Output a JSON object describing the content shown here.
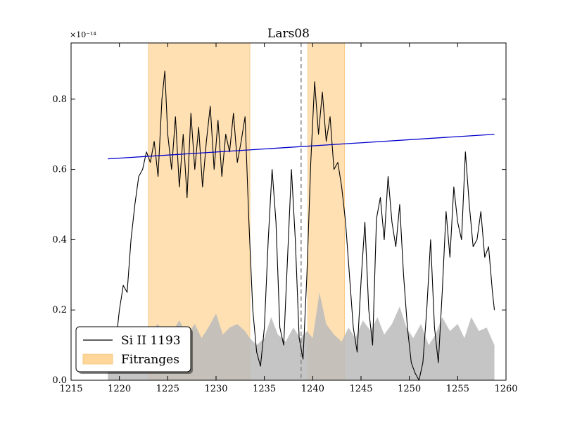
{
  "chart_data": {
    "type": "line",
    "title": "Lars08",
    "xlabel": "",
    "ylabel": "",
    "xlim": [
      1215,
      1260
    ],
    "ylim": [
      0.0,
      0.96
    ],
    "y_offset_label": "×10⁻¹⁴",
    "x_ticks": [
      "1215",
      "1220",
      "1225",
      "1230",
      "1235",
      "1240",
      "1245",
      "1250",
      "1255",
      "1260"
    ],
    "y_ticks": [
      "0.0",
      "0.2",
      "0.4",
      "0.6",
      "0.8"
    ],
    "fit_ranges": [
      [
        1223.0,
        1233.5
      ],
      [
        1239.5,
        1243.3
      ]
    ],
    "dashed_line_x": 1238.8,
    "continuum": {
      "x": [
        1218.8,
        1258.8
      ],
      "y": [
        0.63,
        0.7
      ]
    },
    "spectrum": {
      "name": "Si II 1193",
      "color": "#000000",
      "x": [
        1218.8,
        1219.2,
        1219.6,
        1220.0,
        1220.4,
        1220.8,
        1221.2,
        1221.6,
        1222.0,
        1222.4,
        1222.8,
        1223.2,
        1223.6,
        1224.0,
        1224.4,
        1224.7,
        1225.0,
        1225.4,
        1225.8,
        1226.2,
        1226.6,
        1227.0,
        1227.4,
        1227.8,
        1228.2,
        1228.6,
        1229.0,
        1229.4,
        1229.8,
        1230.2,
        1230.6,
        1231.0,
        1231.4,
        1231.8,
        1232.2,
        1232.6,
        1233.0,
        1233.4,
        1233.8,
        1234.2,
        1234.6,
        1235.0,
        1235.4,
        1235.8,
        1236.2,
        1236.6,
        1237.0,
        1237.4,
        1237.8,
        1238.2,
        1238.6,
        1239.0,
        1239.4,
        1239.8,
        1240.2,
        1240.6,
        1241.0,
        1241.4,
        1241.8,
        1242.2,
        1242.6,
        1243.0,
        1243.4,
        1243.8,
        1244.2,
        1244.6,
        1245.0,
        1245.4,
        1245.8,
        1246.2,
        1246.6,
        1247.0,
        1247.4,
        1247.8,
        1248.2,
        1248.6,
        1249.0,
        1249.4,
        1249.8,
        1250.2,
        1250.6,
        1251.0,
        1251.4,
        1251.8,
        1252.2,
        1252.6,
        1253.0,
        1253.4,
        1253.8,
        1254.2,
        1254.6,
        1255.0,
        1255.4,
        1255.8,
        1256.2,
        1256.6,
        1257.0,
        1257.4,
        1257.8,
        1258.2,
        1258.6,
        1258.8
      ],
      "y": [
        0.15,
        0.12,
        0.1,
        0.2,
        0.27,
        0.25,
        0.4,
        0.5,
        0.58,
        0.6,
        0.65,
        0.62,
        0.68,
        0.58,
        0.8,
        0.88,
        0.7,
        0.6,
        0.75,
        0.55,
        0.7,
        0.52,
        0.76,
        0.6,
        0.72,
        0.55,
        0.68,
        0.78,
        0.6,
        0.74,
        0.58,
        0.7,
        0.65,
        0.76,
        0.62,
        0.68,
        0.75,
        0.45,
        0.2,
        0.08,
        0.04,
        0.15,
        0.4,
        0.6,
        0.45,
        0.15,
        0.1,
        0.35,
        0.6,
        0.4,
        0.12,
        0.06,
        0.3,
        0.62,
        0.85,
        0.7,
        0.82,
        0.68,
        0.75,
        0.6,
        0.62,
        0.55,
        0.45,
        0.3,
        0.15,
        0.08,
        0.28,
        0.45,
        0.2,
        0.1,
        0.46,
        0.52,
        0.4,
        0.58,
        0.45,
        0.38,
        0.5,
        0.3,
        0.15,
        0.05,
        0.02,
        0.0,
        0.05,
        0.2,
        0.4,
        0.15,
        0.05,
        0.25,
        0.48,
        0.35,
        0.55,
        0.45,
        0.4,
        0.65,
        0.5,
        0.38,
        0.4,
        0.48,
        0.35,
        0.38,
        0.25,
        0.2
      ]
    },
    "error_spectrum": {
      "color": "#bbbbbb",
      "x": [
        1218.8,
        1219.5,
        1220.3,
        1221.0,
        1221.8,
        1222.5,
        1223.2,
        1224.0,
        1224.8,
        1225.5,
        1226.2,
        1227.0,
        1227.8,
        1228.5,
        1229.2,
        1230.0,
        1230.7,
        1231.4,
        1232.2,
        1233.0,
        1233.5,
        1234.2,
        1235.0,
        1235.7,
        1236.4,
        1237.2,
        1238.0,
        1238.7,
        1239.4,
        1240.0,
        1240.7,
        1241.4,
        1242.2,
        1243.0,
        1243.7,
        1244.4,
        1245.2,
        1246.0,
        1246.7,
        1247.4,
        1248.2,
        1249.0,
        1249.7,
        1250.4,
        1251.2,
        1252.0,
        1252.7,
        1253.4,
        1254.2,
        1255.0,
        1255.7,
        1256.4,
        1257.2,
        1258.0,
        1258.8
      ],
      "y": [
        0.03,
        0.05,
        0.07,
        0.08,
        0.1,
        0.11,
        0.14,
        0.16,
        0.12,
        0.14,
        0.17,
        0.13,
        0.16,
        0.12,
        0.15,
        0.19,
        0.13,
        0.15,
        0.16,
        0.14,
        0.12,
        0.1,
        0.12,
        0.18,
        0.13,
        0.11,
        0.15,
        0.12,
        0.14,
        0.12,
        0.25,
        0.16,
        0.13,
        0.11,
        0.15,
        0.12,
        0.17,
        0.14,
        0.18,
        0.13,
        0.16,
        0.21,
        0.15,
        0.12,
        0.16,
        0.1,
        0.13,
        0.18,
        0.14,
        0.16,
        0.12,
        0.18,
        0.14,
        0.15,
        0.1
      ]
    },
    "legend": {
      "placement": "lower-left",
      "entries": [
        {
          "label": "Si II 1193",
          "type": "line",
          "color": "#000000"
        },
        {
          "label": "Fitranges",
          "type": "patch",
          "color": "#ffd699"
        }
      ]
    },
    "colors": {
      "fitrange_fill": "#ffd699",
      "continuum_line": "#0000cc",
      "error_fill": "#bbbbbb",
      "dashed": "#888888"
    }
  }
}
